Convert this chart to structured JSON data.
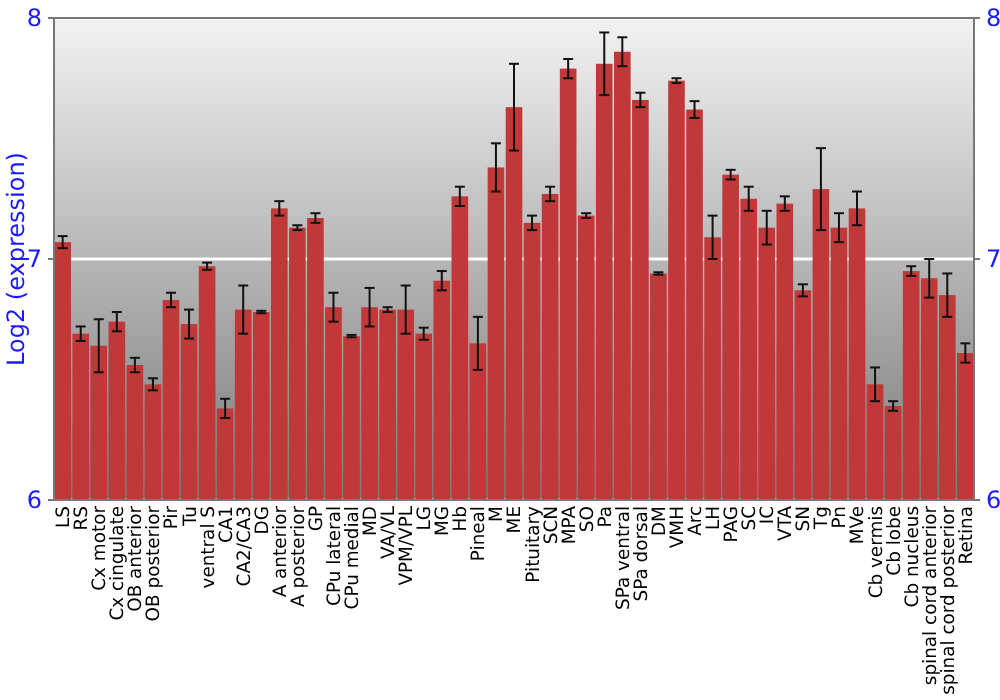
{
  "chart_data": {
    "type": "bar",
    "ylabel": "Log2 (expression)",
    "categories": [
      "LS",
      "RS",
      "Cx motor",
      "Cx cingulate",
      "OB anterior",
      "OB posterior",
      "Pir",
      "Tu",
      "ventral S",
      "CA1",
      "CA2/CA3",
      "DG",
      "A anterior",
      "A posterior",
      "GP",
      "CPu lateral",
      "CPu medial",
      "MD",
      "VA/VL",
      "VPM/VPL",
      "LG",
      "MG",
      "Hb",
      "Pineal",
      "M",
      "ME",
      "Pituitary",
      "SCN",
      "MPA",
      "SO",
      "Pa",
      "SPa ventral",
      "SPa dorsal",
      "DM",
      "VMH",
      "Arc",
      "LH",
      "PAG",
      "SC",
      "IC",
      "VTA",
      "SN",
      "Tg",
      "Pn",
      "MVe",
      "Cb vermis",
      "Cb lobe",
      "Cb nucleus",
      "spinal cord anterior",
      "spinal cord posterior",
      "Retina"
    ],
    "values": [
      7.07,
      6.69,
      6.64,
      6.74,
      6.56,
      6.48,
      6.83,
      6.73,
      6.97,
      6.38,
      6.79,
      6.78,
      7.21,
      7.13,
      7.17,
      6.8,
      6.68,
      6.8,
      6.79,
      6.79,
      6.69,
      6.91,
      7.26,
      6.65,
      7.38,
      7.63,
      7.15,
      7.27,
      7.79,
      7.18,
      7.81,
      7.86,
      7.66,
      6.94,
      7.74,
      7.62,
      7.09,
      7.35,
      7.25,
      7.13,
      7.23,
      6.87,
      7.29,
      7.13,
      7.21,
      6.48,
      6.39,
      6.95,
      6.92,
      6.85,
      6.61
    ],
    "errors": [
      0.025,
      0.03,
      0.11,
      0.04,
      0.03,
      0.025,
      0.03,
      0.06,
      0.015,
      0.04,
      0.1,
      0.005,
      0.03,
      0.01,
      0.02,
      0.06,
      0.005,
      0.08,
      0.01,
      0.1,
      0.025,
      0.04,
      0.04,
      0.11,
      0.1,
      0.18,
      0.03,
      0.03,
      0.04,
      0.01,
      0.13,
      0.06,
      0.03,
      0.005,
      0.01,
      0.035,
      0.09,
      0.02,
      0.05,
      0.07,
      0.03,
      0.025,
      0.17,
      0.06,
      0.07,
      0.07,
      0.02,
      0.02,
      0.08,
      0.09,
      0.04
    ],
    "color": "#c03838",
    "ylim": [
      6,
      8
    ],
    "yticks": [
      6,
      7,
      8
    ],
    "y2lim": [
      6,
      8
    ],
    "y2ticks": [
      6,
      7,
      8
    ],
    "grid": "y"
  }
}
